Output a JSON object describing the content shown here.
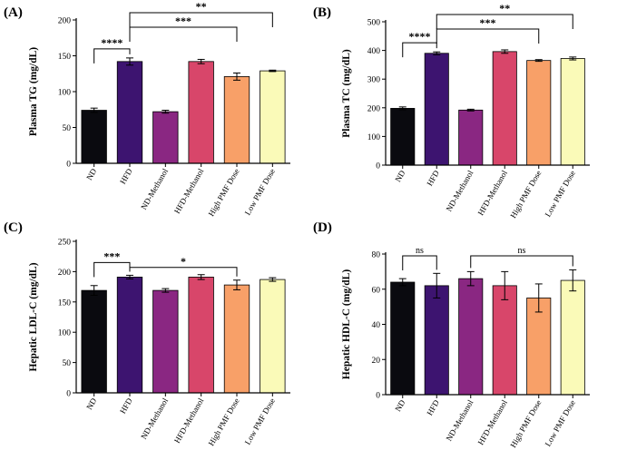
{
  "colors": {
    "ND": "#0a0a0f",
    "HFD": "#3d1470",
    "ND-Methanol": "#8a2782",
    "HFD-Methanol": "#d8466a",
    "High PMF Dose": "#f8a068",
    "Low PMF Dose": "#fafab8"
  },
  "chart_data": [
    {
      "panel": "(A)",
      "type": "bar",
      "ylabel": "Plasma TG (mg/dL)",
      "ylim": [
        0,
        200
      ],
      "yticks": [
        0,
        50,
        100,
        150,
        200
      ],
      "categories": [
        "ND",
        "HFD",
        "ND-Methanol",
        "HFD-Methanol",
        "High PMF Dose",
        "Low PMF Dose"
      ],
      "values": [
        74,
        142,
        72,
        142,
        121,
        129
      ],
      "errors": [
        3,
        5,
        2,
        3,
        5,
        1
      ],
      "significance": [
        {
          "from": "ND",
          "to": "HFD",
          "label": "****"
        },
        {
          "from": "HFD",
          "to": "High PMF Dose",
          "label": "***"
        },
        {
          "from": "HFD",
          "to": "Low PMF Dose",
          "label": "**"
        }
      ]
    },
    {
      "panel": "(B)",
      "type": "bar",
      "ylabel": "Plasma TC (mg/dL)",
      "ylim": [
        0,
        500
      ],
      "yticks": [
        0,
        100,
        200,
        300,
        400,
        500
      ],
      "categories": [
        "ND",
        "HFD",
        "ND-Methanol",
        "HFD-Methanol",
        "High PMF Dose",
        "Low PMF Dose"
      ],
      "values": [
        198,
        390,
        192,
        396,
        365,
        372
      ],
      "errors": [
        5,
        5,
        3,
        6,
        3,
        5
      ],
      "significance": [
        {
          "from": "ND",
          "to": "HFD",
          "label": "****"
        },
        {
          "from": "HFD",
          "to": "High PMF Dose",
          "label": "***"
        },
        {
          "from": "HFD",
          "to": "Low PMF Dose",
          "label": "**"
        }
      ]
    },
    {
      "panel": "(C)",
      "type": "bar",
      "ylabel": "Hepatic LDL-C (mg/dL)",
      "ylim": [
        0,
        250
      ],
      "yticks": [
        0,
        50,
        100,
        150,
        200,
        250
      ],
      "categories": [
        "ND",
        "HFD",
        "ND-Methanol",
        "HFD-Methanol",
        "High PMF Dose",
        "Low PMF Dose"
      ],
      "values": [
        169,
        191,
        169,
        191,
        178,
        187
      ],
      "errors": [
        8,
        3,
        3,
        4,
        8,
        3
      ],
      "significance": [
        {
          "from": "ND",
          "to": "HFD",
          "label": "***"
        },
        {
          "from": "HFD",
          "to": "High PMF Dose",
          "label": "*"
        }
      ]
    },
    {
      "panel": "(D)",
      "type": "bar",
      "ylabel": "Hepatic HDL-C (mg/dL)",
      "ylim": [
        0,
        80
      ],
      "yticks": [
        0,
        20,
        40,
        60,
        80
      ],
      "categories": [
        "ND",
        "HFD",
        "ND-Methanol",
        "HFD-Methanol",
        "High PMF Dose",
        "Low PMF Dose"
      ],
      "values": [
        64,
        62,
        66,
        62,
        55,
        65
      ],
      "errors": [
        2,
        7,
        4,
        8,
        8,
        6
      ],
      "significance": [
        {
          "from": "ND",
          "to": "HFD",
          "label": "ns"
        },
        {
          "from": "ND-Methanol",
          "to": "Low PMF Dose",
          "label": "ns"
        }
      ]
    }
  ]
}
